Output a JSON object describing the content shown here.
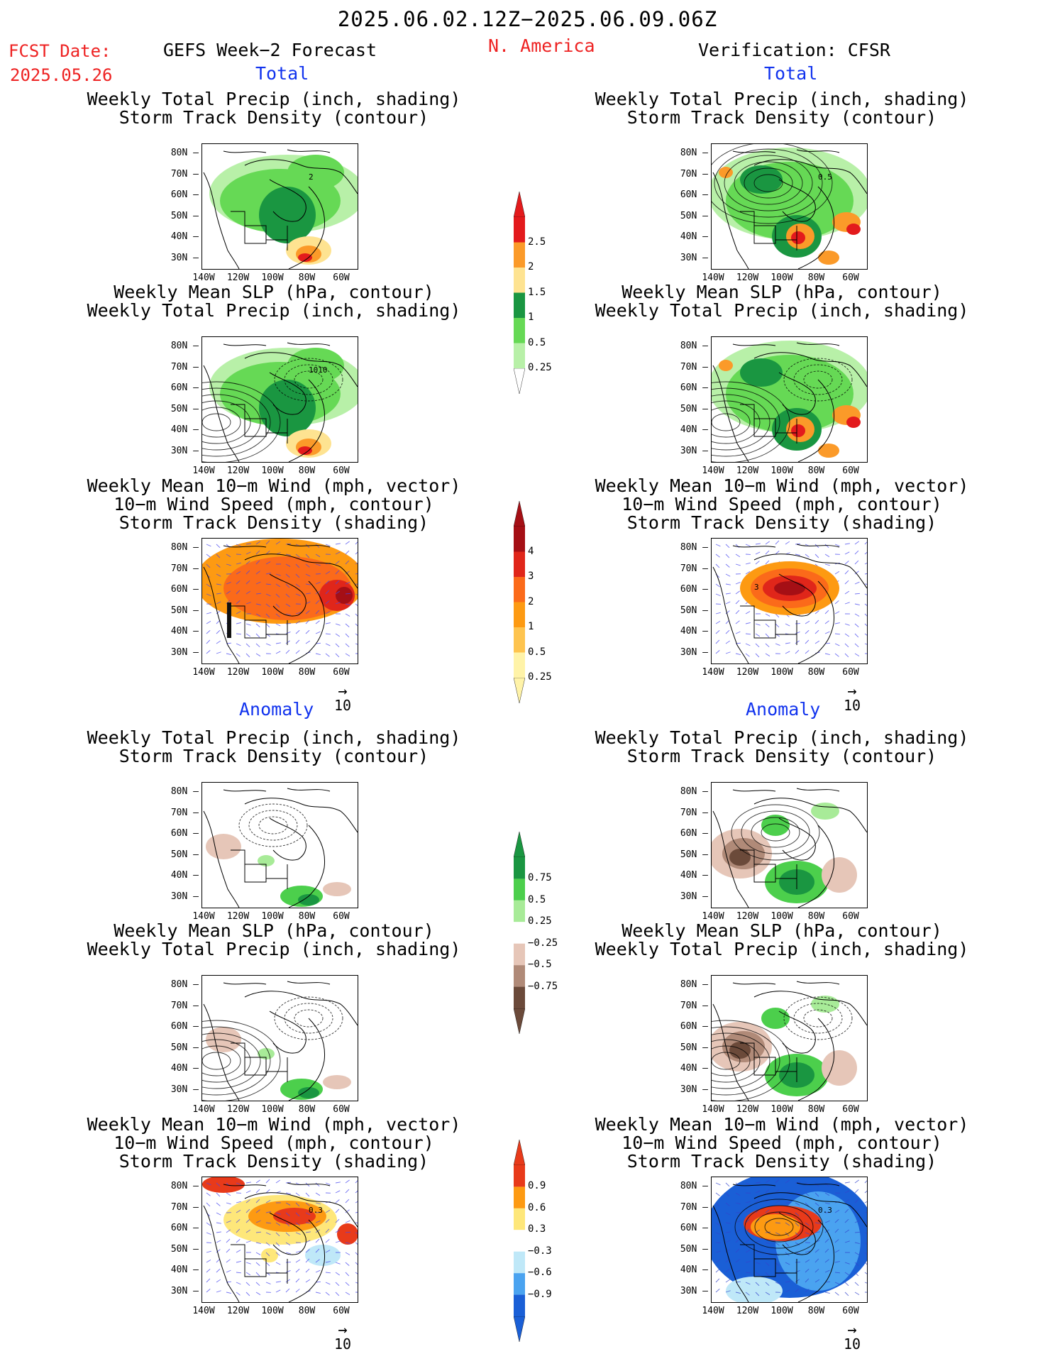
{
  "header": {
    "date_range": "2025.06.02.12Z−2025.06.09.06Z",
    "fcst_label": "FCST Date:",
    "fcst_date": "2025.05.26",
    "forecast_name": "GEFS Week−2 Forecast",
    "region": "N. America",
    "verification": "Verification: CFSR"
  },
  "sections": {
    "total": "Total",
    "anomaly": "Anomaly"
  },
  "titles": {
    "precip_storm": "Weekly Total Precip (inch, shading)\nStorm Track Density (contour)",
    "slp_precip": "Weekly Mean SLP (hPa, contour)\nWeekly Total Precip (inch, shading)",
    "wind_storm": "Weekly Mean 10−m Wind (mph, vector)\n10−m Wind Speed (mph, contour)\nStorm Track Density (shading)"
  },
  "axes": {
    "lat_labels": [
      "80N",
      "70N",
      "60N",
      "50N",
      "40N",
      "30N"
    ],
    "lon_labels": [
      "140W",
      "120W",
      "100W",
      "80W",
      "60W"
    ]
  },
  "vector_ref": "10",
  "colorbars": {
    "precip_total": {
      "labels": [
        "2.5",
        "2",
        "1.5",
        "1",
        "0.5",
        "0.25"
      ],
      "colors": [
        "#e31a1c",
        "#fb9a29",
        "#fee391",
        "#1a9641",
        "#66d955",
        "#b8f0a8"
      ]
    },
    "storm_total": {
      "labels": [
        "4",
        "3",
        "2",
        "1",
        "0.5",
        "0.25"
      ],
      "colors": [
        "#a50f15",
        "#e0261a",
        "#fb6a1a",
        "#fd9a12",
        "#fec44f",
        "#fff3a8"
      ]
    },
    "precip_anom": {
      "labels": [
        "0.75",
        "0.5",
        "0.25",
        "−0.25",
        "−0.5",
        "−0.75"
      ],
      "colors": [
        "#1a9641",
        "#4ccf4c",
        "#a8eb98",
        "#ffffff",
        "#e6c6b8",
        "#b08a78",
        "#6b4a3a"
      ]
    },
    "storm_anom": {
      "labels": [
        "0.9",
        "0.6",
        "0.3",
        "−0.3",
        "−0.6",
        "−0.9"
      ],
      "colors": [
        "#e83a1a",
        "#fd9a12",
        "#fee77a",
        "#ffffff",
        "#bfe8f8",
        "#4aa3f0",
        "#1a5fd6"
      ]
    }
  },
  "panel_labels": {
    "fcst_precip_total": "2",
    "obs_precip_total": "0.5",
    "fcst_slp_total": "1010",
    "obs_wind_total": "3",
    "fcst_storm_anom": "0.3",
    "obs_storm_anom": "0.3"
  }
}
